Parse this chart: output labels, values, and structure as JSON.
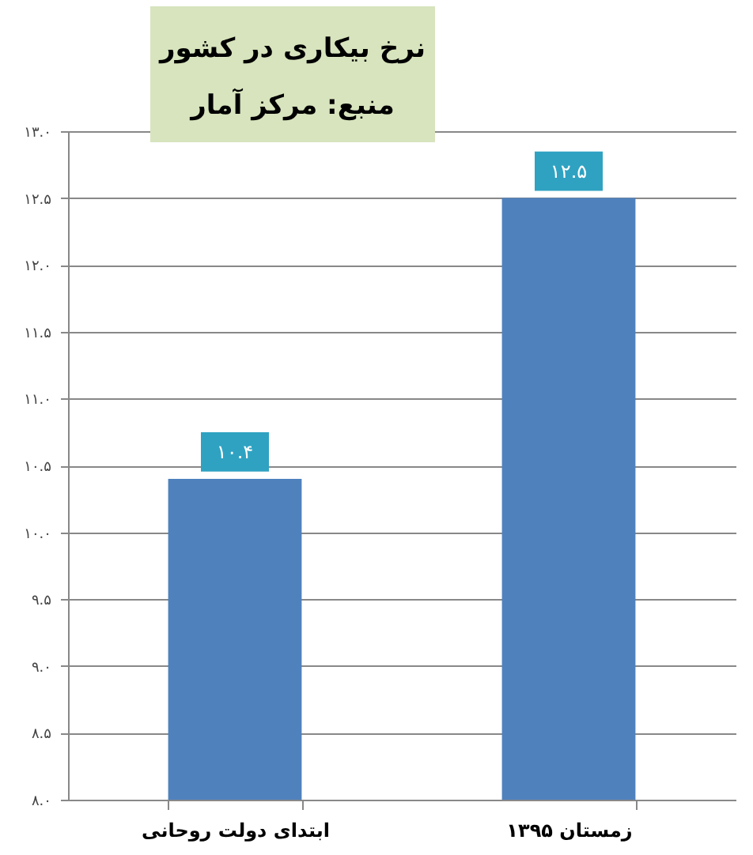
{
  "chart_data": {
    "type": "bar",
    "title": "نرخ بیکاری در کشور",
    "annotations": [
      "منبع: مرکز آمار"
    ],
    "categories": [
      "ابتدای دولت روحانی",
      "زمستان ۱۳۹۵"
    ],
    "values": [
      10.4,
      12.5
    ],
    "value_labels": [
      "۱۰.۴",
      "۱۲.۵"
    ],
    "color": "#4f81bd",
    "ylim": [
      8,
      13
    ],
    "yticks": [
      {
        "value": 8,
        "label": "۸.۰"
      },
      {
        "value": 8.5,
        "label": "۸.۵"
      },
      {
        "value": 9,
        "label": "۹.۰"
      },
      {
        "value": 9.5,
        "label": "۹.۵"
      },
      {
        "value": 10,
        "label": "۱۰.۰"
      },
      {
        "value": 10.5,
        "label": "۱۰.۵"
      },
      {
        "value": 11,
        "label": "۱۱.۰"
      },
      {
        "value": 11.5,
        "label": "۱۱.۵"
      },
      {
        "value": 12,
        "label": "۱۲.۰"
      },
      {
        "value": 12.5,
        "label": "۱۲.۵"
      },
      {
        "value": 13,
        "label": "۱۳.۰"
      }
    ],
    "grid": "y"
  }
}
